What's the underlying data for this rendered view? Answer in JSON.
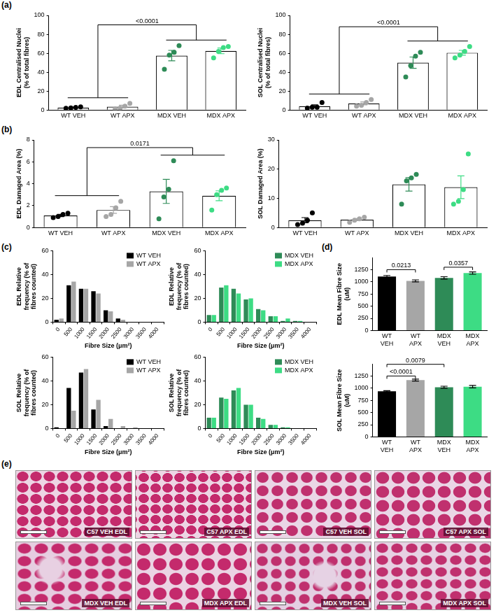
{
  "chart_data": [
    {
      "type": "bar",
      "panel": "(a)",
      "y_label": "EDL Centralised Nuclei (% of total fibres)",
      "categories": [
        "WT VEH",
        "WT APX",
        "MDX VEH",
        "MDX APX"
      ],
      "values": [
        2.5,
        3.5,
        57.5,
        62.5
      ],
      "errors": [
        0.5,
        1.5,
        5.5,
        3
      ],
      "points": [
        [
          1.8,
          2.2,
          2.8,
          3.2
        ],
        [
          1,
          2,
          4,
          7
        ],
        [
          43,
          58,
          61,
          68
        ],
        [
          55,
          62,
          66,
          67
        ]
      ],
      "colors": [
        "#000000",
        "#a6a6a6",
        "#2e8b57",
        "#3ddc84"
      ],
      "ylim": [
        0,
        100
      ],
      "yticks": [
        0,
        20,
        40,
        60,
        80,
        100
      ],
      "grid": false,
      "annotations": [
        {
          "text": "<0.0001",
          "left": [
            0,
            1
          ],
          "right": [
            2,
            3
          ],
          "y": 90
        }
      ]
    },
    {
      "type": "bar",
      "panel": "(a)",
      "y_label": "SOL Centralised Nuclei (% of total fibres)",
      "categories": [
        "WT VEH",
        "WT APX",
        "MDX VEH",
        "MDX APX"
      ],
      "values": [
        4,
        7,
        50,
        60.5
      ],
      "errors": [
        1.4,
        1.6,
        6,
        2.5
      ],
      "points": [
        [
          2,
          3,
          3,
          8
        ],
        [
          4,
          5,
          8,
          11
        ],
        [
          35,
          47,
          57,
          61
        ],
        [
          55,
          58,
          62,
          67
        ]
      ],
      "colors": [
        "#000000",
        "#a6a6a6",
        "#2e8b57",
        "#3ddc84"
      ],
      "ylim": [
        0,
        100
      ],
      "yticks": [
        0,
        20,
        40,
        60,
        80,
        100
      ],
      "grid": false,
      "annotations": [
        {
          "text": "<0.0001",
          "left": [
            0,
            1
          ],
          "right": [
            2,
            3
          ],
          "y": 88
        }
      ]
    },
    {
      "type": "bar",
      "panel": "(b)",
      "y_label": "EDL Damaged Area (%)",
      "categories": [
        "WT VEH",
        "WT APX",
        "MDX VEH",
        "MDX APX"
      ],
      "values": [
        1.1,
        1.6,
        3.3,
        2.9
      ],
      "errors": [
        0.1,
        0.3,
        1.1,
        0.45
      ],
      "points": [
        [
          0.9,
          1.0,
          1.2,
          1.3
        ],
        [
          1.0,
          1.2,
          1.8,
          2.4
        ],
        [
          0.8,
          2.8,
          3.5,
          6.1
        ],
        [
          1.6,
          3.0,
          3.4,
          3.6
        ]
      ],
      "colors": [
        "#000000",
        "#a6a6a6",
        "#2e8b57",
        "#3ddc84"
      ],
      "ylim": [
        0,
        8
      ],
      "yticks": [
        0,
        2,
        4,
        6,
        8
      ],
      "grid": false,
      "annotations": [
        {
          "text": "0.0171",
          "left": [
            0,
            1
          ],
          "right": [
            2,
            3
          ],
          "y": 7.3
        }
      ]
    },
    {
      "type": "bar",
      "panel": "(b)",
      "y_label": "SOL Damaged Area (%)",
      "categories": [
        "WT VEH",
        "WT APX",
        "MDX VEH",
        "MDX APX"
      ],
      "values": [
        2.5,
        2.7,
        14.8,
        13.8
      ],
      "errors": [
        0.9,
        0.35,
        2.3,
        3.9
      ],
      "points": [
        [
          1,
          1.5,
          2.5,
          5
        ],
        [
          1.8,
          2.5,
          3,
          3.5
        ],
        [
          8,
          16,
          17,
          18.2
        ],
        [
          8,
          9,
          13,
          25.2
        ]
      ],
      "colors": [
        "#000000",
        "#a6a6a6",
        "#2e8b57",
        "#3ddc84"
      ],
      "ylim": [
        0,
        30
      ],
      "yticks": [
        0,
        10,
        20,
        30
      ],
      "grid": false
    },
    {
      "type": "bar",
      "panel": "(c)",
      "y_label": "EDL Relative frequency (% of fibres counted)",
      "x_label": "Fibre Size (μm²)",
      "categories": [
        0,
        500,
        1000,
        1500,
        2000,
        2500,
        3000,
        3500,
        4000
      ],
      "series": [
        {
          "name": "WT VEH",
          "color": "#000000",
          "values": [
            2,
            31,
            28,
            26,
            10,
            3,
            0,
            0,
            0
          ]
        },
        {
          "name": "WT APX",
          "color": "#a6a6a6",
          "values": [
            3,
            34,
            28,
            24,
            9,
            2,
            0,
            0,
            0
          ]
        }
      ],
      "ylim": [
        0,
        60
      ],
      "yticks": [
        0,
        20,
        40,
        60
      ],
      "grid": false,
      "legend": "top-right"
    },
    {
      "type": "bar",
      "panel": "(c)",
      "y_label": "EDL Relative frequency (% of fibres counted)",
      "x_label": "Fibre Size (μm²)",
      "categories": [
        0,
        500,
        1000,
        1500,
        2000,
        2500,
        3000,
        3500,
        4000
      ],
      "series": [
        {
          "name": "MDX VEH",
          "color": "#2e8b57",
          "values": [
            6,
            29,
            28,
            19,
            11,
            5,
            1,
            1,
            0
          ]
        },
        {
          "name": "MDX APX",
          "color": "#3ddc84",
          "values": [
            6,
            31,
            24,
            20,
            10,
            5,
            3,
            1,
            0
          ]
        }
      ],
      "ylim": [
        0,
        60
      ],
      "yticks": [
        0,
        20,
        40,
        60
      ],
      "grid": false,
      "legend": "top-right"
    },
    {
      "type": "bar",
      "panel": "(c)",
      "y_label": "SOL Relative frequency (% of fibres counted)",
      "x_label": "Fibre Size (μm²)",
      "categories": [
        0,
        500,
        1000,
        1500,
        2000,
        2500,
        3000,
        3500,
        4000
      ],
      "series": [
        {
          "name": "WT VEH",
          "color": "#000000",
          "values": [
            1,
            34,
            47,
            16,
            2,
            0,
            0,
            0,
            0
          ]
        },
        {
          "name": "WT APX",
          "color": "#a6a6a6",
          "values": [
            0,
            15,
            50,
            24,
            8,
            2,
            1,
            0,
            0
          ]
        }
      ],
      "ylim": [
        0,
        60
      ],
      "yticks": [
        0,
        20,
        40,
        60
      ],
      "grid": false,
      "legend": "top-right"
    },
    {
      "type": "bar",
      "panel": "(c)",
      "y_label": "SOL Relative frequency (% of fibres counted)",
      "x_label": "Fibre Size (μm²)",
      "categories": [
        0,
        500,
        1000,
        1500,
        2000,
        2500,
        3000,
        3500,
        4000
      ],
      "series": [
        {
          "name": "MDX VEH",
          "color": "#2e8b57",
          "values": [
            9,
            26,
            32,
            20,
            9,
            3,
            1,
            0,
            0
          ]
        },
        {
          "name": "MDX APX",
          "color": "#3ddc84",
          "values": [
            9,
            25,
            34,
            20,
            8,
            3,
            1,
            0,
            0
          ]
        }
      ],
      "ylim": [
        0,
        60
      ],
      "yticks": [
        0,
        20,
        40,
        60
      ],
      "grid": false,
      "legend": "top-right"
    },
    {
      "type": "bar",
      "panel": "(d)",
      "y_label": "EDL Mean Fibre Size (uM)",
      "categories": [
        "WT VEH",
        "WT APX",
        "MDX VEH",
        "MDX APX"
      ],
      "values": [
        1110,
        1020,
        1080,
        1180
      ],
      "errors": [
        20,
        20,
        25,
        25
      ],
      "colors": [
        "#000000",
        "#a6a6a6",
        "#2e8b57",
        "#3ddc84"
      ],
      "ylim": [
        0,
        1500
      ],
      "yticks": [
        0,
        250,
        500,
        750,
        1000,
        1250
      ],
      "grid": false,
      "annotations": [
        {
          "text": "0.0213",
          "left": [
            0
          ],
          "right": [
            1
          ],
          "y": 1250
        },
        {
          "text": "0.0357",
          "left": [
            2
          ],
          "right": [
            3
          ],
          "y": 1300
        }
      ]
    },
    {
      "type": "bar",
      "panel": "(d)",
      "y_label": "SOL Mean Fibre Size (uM)",
      "categories": [
        "WT VEH",
        "WT APX",
        "MDX VEH",
        "MDX APX"
      ],
      "values": [
        935,
        1165,
        1020,
        1030
      ],
      "errors": [
        15,
        20,
        20,
        25
      ],
      "colors": [
        "#000000",
        "#a6a6a6",
        "#2e8b57",
        "#3ddc84"
      ],
      "ylim": [
        0,
        1500
      ],
      "yticks": [
        0,
        250,
        500,
        750,
        1000,
        1250
      ],
      "grid": false,
      "annotations": [
        {
          "text": "<0.0001",
          "left": [
            0
          ],
          "right": [
            1
          ],
          "y": 1250
        },
        {
          "text": "0.0079",
          "left": [
            0
          ],
          "right": [
            2
          ],
          "y": 1490
        }
      ]
    }
  ],
  "images": {
    "panel": "(e)",
    "captions": [
      "C57 VEH EDL",
      "C57 APX EDL",
      "C57 VEH SOL",
      "C57 APX SOL",
      "MDX VEH EDL",
      "MDX APX EDL",
      "MDX VEH SOL",
      "MDX APX SOL"
    ]
  }
}
